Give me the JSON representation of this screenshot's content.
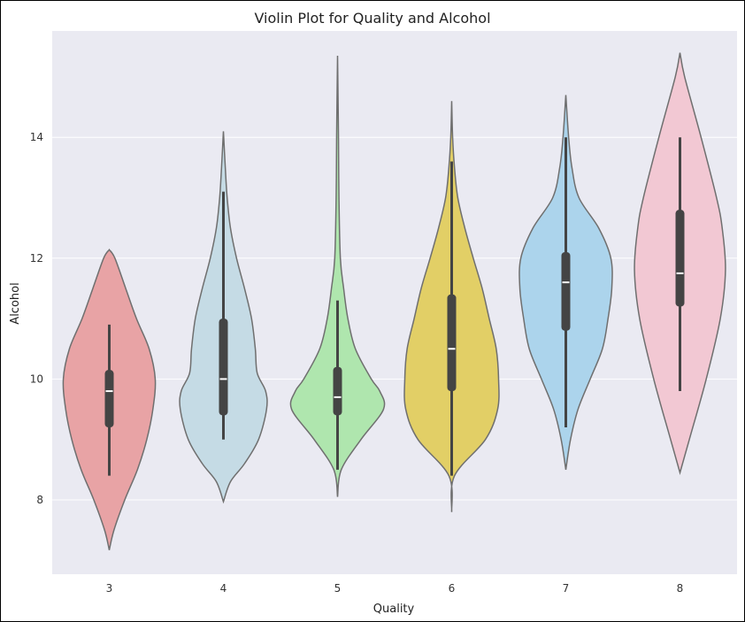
{
  "chart_data": {
    "type": "violin",
    "title": "Violin Plot for Quality and Alcohol",
    "xlabel": "Quality",
    "ylabel": "Alcohol",
    "ylim": [
      6.77,
      15.76
    ],
    "yticks": [
      8,
      10,
      12,
      14
    ],
    "grid": true,
    "background": "#eaeaf2",
    "categories": [
      "3",
      "4",
      "5",
      "6",
      "7",
      "8"
    ],
    "violins": [
      {
        "category": "3",
        "color": "#e8a3a5",
        "min": 7.17,
        "max": 12.14,
        "whisker_low": 8.4,
        "q1": 9.2,
        "median": 9.8,
        "q3": 10.15,
        "whisker_high": 10.9,
        "density": [
          [
            7.17,
            0
          ],
          [
            7.5,
            0.1
          ],
          [
            8,
            0.33
          ],
          [
            8.5,
            0.6
          ],
          [
            9,
            0.8
          ],
          [
            9.5,
            0.93
          ],
          [
            10,
            0.98
          ],
          [
            10.5,
            0.85
          ],
          [
            11,
            0.58
          ],
          [
            11.5,
            0.35
          ],
          [
            12,
            0.12
          ],
          [
            12.14,
            0
          ]
        ]
      },
      {
        "category": "4",
        "color": "#c5dbe5",
        "min": 7.97,
        "max": 14.1,
        "whisker_low": 9.0,
        "q1": 9.4,
        "median": 10.0,
        "q3": 11.0,
        "whisker_high": 13.1,
        "density": [
          [
            7.97,
            0
          ],
          [
            8.3,
            0.15
          ],
          [
            8.6,
            0.45
          ],
          [
            9,
            0.75
          ],
          [
            9.5,
            0.92
          ],
          [
            9.8,
            0.9
          ],
          [
            10.1,
            0.72
          ],
          [
            10.5,
            0.68
          ],
          [
            11,
            0.6
          ],
          [
            11.5,
            0.45
          ],
          [
            12,
            0.28
          ],
          [
            12.5,
            0.15
          ],
          [
            13,
            0.08
          ],
          [
            13.5,
            0.04
          ],
          [
            14.1,
            0
          ]
        ]
      },
      {
        "category": "5",
        "color": "#afe6ae",
        "min": 8.05,
        "max": 15.35,
        "whisker_low": 8.5,
        "q1": 9.4,
        "median": 9.7,
        "q3": 10.2,
        "whisker_high": 11.3,
        "density": [
          [
            8.05,
            0
          ],
          [
            8.5,
            0.08
          ],
          [
            9,
            0.5
          ],
          [
            9.5,
            0.98
          ],
          [
            9.8,
            0.9
          ],
          [
            10,
            0.72
          ],
          [
            10.5,
            0.38
          ],
          [
            11,
            0.22
          ],
          [
            11.5,
            0.13
          ],
          [
            12,
            0.06
          ],
          [
            13,
            0.03
          ],
          [
            14,
            0.02
          ],
          [
            15.35,
            0
          ]
        ]
      },
      {
        "category": "6",
        "color": "#e2cf66",
        "min": 7.8,
        "max": 14.6,
        "whisker_low": 8.4,
        "q1": 9.8,
        "median": 10.5,
        "q3": 11.4,
        "whisker_high": 13.6,
        "density": [
          [
            7.8,
            0
          ],
          [
            8.4,
            0.06
          ],
          [
            9,
            0.72
          ],
          [
            9.5,
            0.98
          ],
          [
            10,
            1
          ],
          [
            10.5,
            0.95
          ],
          [
            11,
            0.8
          ],
          [
            11.5,
            0.65
          ],
          [
            12,
            0.46
          ],
          [
            12.5,
            0.28
          ],
          [
            13,
            0.13
          ],
          [
            13.5,
            0.06
          ],
          [
            14,
            0.02
          ],
          [
            14.6,
            0
          ]
        ]
      },
      {
        "category": "7",
        "color": "#acd4ec",
        "min": 8.5,
        "max": 14.7,
        "whisker_low": 9.2,
        "q1": 10.8,
        "median": 11.6,
        "q3": 12.1,
        "whisker_high": 14.0,
        "density": [
          [
            8.5,
            0
          ],
          [
            9,
            0.1
          ],
          [
            9.5,
            0.26
          ],
          [
            10,
            0.52
          ],
          [
            10.5,
            0.78
          ],
          [
            11,
            0.9
          ],
          [
            11.5,
            0.98
          ],
          [
            12,
            0.96
          ],
          [
            12.5,
            0.7
          ],
          [
            13,
            0.28
          ],
          [
            13.5,
            0.13
          ],
          [
            14,
            0.06
          ],
          [
            14.7,
            0
          ]
        ]
      },
      {
        "category": "8",
        "color": "#f2c8d3",
        "min": 8.45,
        "max": 15.4,
        "whisker_low": 9.8,
        "q1": 11.2,
        "median": 11.75,
        "q3": 12.8,
        "whisker_high": 14.0,
        "density": [
          [
            8.45,
            0
          ],
          [
            9,
            0.2
          ],
          [
            10,
            0.56
          ],
          [
            11,
            0.86
          ],
          [
            11.8,
            0.97
          ],
          [
            12.5,
            0.9
          ],
          [
            13,
            0.78
          ],
          [
            14,
            0.45
          ],
          [
            15,
            0.1
          ],
          [
            15.4,
            0
          ]
        ]
      }
    ]
  }
}
